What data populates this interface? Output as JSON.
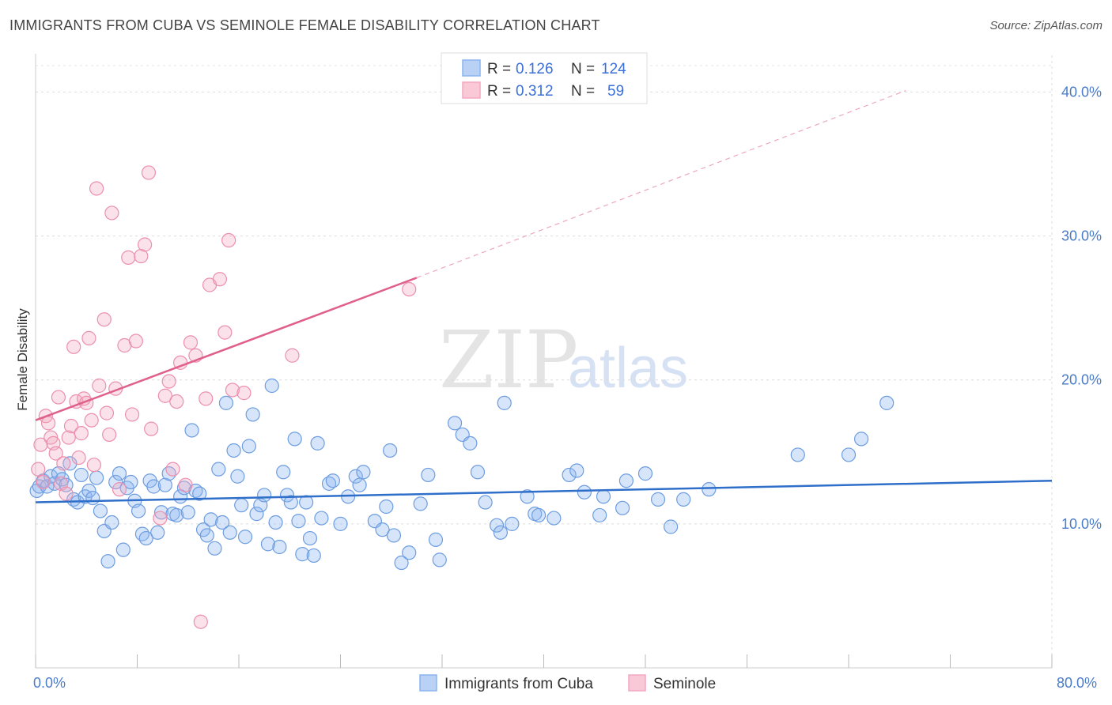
{
  "title": "IMMIGRANTS FROM CUBA VS SEMINOLE FEMALE DISABILITY CORRELATION CHART",
  "source": "Source: ZipAtlas.com",
  "watermark": {
    "zip": "ZIP",
    "atlas": "atlas"
  },
  "colors": {
    "blue": "#8ab4f0",
    "blue_stroke": "#6d9de0",
    "blue_line": "#2f6fc9",
    "pink": "#f4a8c0",
    "pink_stroke": "#ec8fae",
    "pink_line": "#e0608c",
    "axis_text": "#4a7cc9"
  },
  "legend": {
    "rows": [
      {
        "r_label": "R =",
        "r_value": "0.126",
        "n_label": "N =",
        "n_value": "124"
      },
      {
        "r_label": "R =",
        "r_value": "0.312",
        "n_label": "N =",
        "n_value": "59"
      }
    ]
  },
  "bottom_legend": [
    "Immigrants from Cuba",
    "Seminole"
  ],
  "chart_data": {
    "type": "scatter",
    "ylabel": "Female Disability",
    "xlim": [
      0,
      80
    ],
    "ylim": [
      0,
      42
    ],
    "x_ticks": [
      "0.0%",
      "80.0%"
    ],
    "y_ticks": [
      {
        "value": 10,
        "label": "10.0%"
      },
      {
        "value": 20,
        "label": "20.0%"
      },
      {
        "value": 30,
        "label": "30.0%"
      },
      {
        "value": 40,
        "label": "40.0%"
      }
    ],
    "series": [
      {
        "name": "Immigrants from Cuba",
        "trend": {
          "x0": 0,
          "y0": 11.5,
          "x1": 80,
          "y1": 13.0
        },
        "points": [
          [
            0.1,
            12.3
          ],
          [
            0.3,
            12.6
          ],
          [
            0.6,
            13.0
          ],
          [
            0.9,
            12.6
          ],
          [
            1.2,
            13.3
          ],
          [
            1.5,
            12.8
          ],
          [
            1.8,
            13.5
          ],
          [
            2.1,
            13.1
          ],
          [
            2.4,
            12.7
          ],
          [
            2.7,
            14.2
          ],
          [
            3.0,
            11.7
          ],
          [
            3.3,
            11.5
          ],
          [
            3.6,
            13.4
          ],
          [
            3.9,
            11.9
          ],
          [
            4.2,
            12.3
          ],
          [
            4.5,
            11.8
          ],
          [
            4.8,
            13.2
          ],
          [
            5.1,
            10.9
          ],
          [
            5.4,
            9.5
          ],
          [
            5.7,
            7.4
          ],
          [
            6.0,
            10.1
          ],
          [
            6.3,
            12.9
          ],
          [
            6.6,
            13.5
          ],
          [
            6.9,
            8.2
          ],
          [
            7.2,
            12.5
          ],
          [
            7.5,
            12.9
          ],
          [
            7.8,
            11.6
          ],
          [
            8.1,
            10.9
          ],
          [
            8.4,
            9.3
          ],
          [
            8.7,
            9.0
          ],
          [
            9.0,
            13.0
          ],
          [
            9.3,
            12.6
          ],
          [
            9.6,
            9.4
          ],
          [
            9.9,
            10.8
          ],
          [
            10.2,
            12.7
          ],
          [
            10.5,
            13.5
          ],
          [
            10.8,
            10.7
          ],
          [
            11.1,
            10.6
          ],
          [
            11.4,
            11.9
          ],
          [
            11.7,
            12.5
          ],
          [
            12.0,
            10.8
          ],
          [
            12.3,
            16.5
          ],
          [
            12.6,
            12.3
          ],
          [
            12.9,
            12.1
          ],
          [
            13.2,
            9.6
          ],
          [
            13.5,
            9.2
          ],
          [
            13.8,
            10.3
          ],
          [
            14.1,
            8.3
          ],
          [
            14.4,
            13.8
          ],
          [
            14.7,
            10.1
          ],
          [
            15.0,
            18.4
          ],
          [
            15.3,
            9.4
          ],
          [
            15.6,
            15.1
          ],
          [
            15.9,
            13.3
          ],
          [
            16.2,
            11.3
          ],
          [
            16.5,
            9.1
          ],
          [
            16.8,
            15.4
          ],
          [
            17.1,
            17.6
          ],
          [
            17.4,
            10.7
          ],
          [
            17.7,
            11.3
          ],
          [
            18.0,
            12.0
          ],
          [
            18.3,
            8.6
          ],
          [
            18.6,
            19.6
          ],
          [
            18.9,
            10.1
          ],
          [
            19.2,
            8.4
          ],
          [
            19.5,
            13.6
          ],
          [
            19.8,
            12.0
          ],
          [
            20.1,
            11.5
          ],
          [
            20.4,
            15.9
          ],
          [
            20.7,
            10.2
          ],
          [
            21.0,
            7.9
          ],
          [
            21.3,
            11.5
          ],
          [
            21.6,
            9.0
          ],
          [
            21.9,
            7.8
          ],
          [
            22.2,
            15.6
          ],
          [
            22.5,
            10.4
          ],
          [
            23.1,
            12.8
          ],
          [
            23.4,
            13.0
          ],
          [
            24.0,
            10.0
          ],
          [
            24.6,
            11.9
          ],
          [
            25.2,
            13.3
          ],
          [
            25.5,
            12.7
          ],
          [
            25.8,
            13.6
          ],
          [
            26.7,
            10.2
          ],
          [
            27.3,
            9.6
          ],
          [
            27.6,
            11.2
          ],
          [
            27.9,
            15.1
          ],
          [
            28.2,
            9.2
          ],
          [
            28.8,
            7.3
          ],
          [
            29.4,
            8.0
          ],
          [
            30.3,
            11.4
          ],
          [
            30.9,
            13.4
          ],
          [
            31.5,
            8.9
          ],
          [
            31.8,
            7.5
          ],
          [
            33.0,
            17.0
          ],
          [
            33.6,
            16.2
          ],
          [
            34.2,
            15.6
          ],
          [
            34.8,
            13.6
          ],
          [
            35.4,
            11.5
          ],
          [
            36.3,
            9.9
          ],
          [
            36.6,
            9.4
          ],
          [
            36.9,
            18.4
          ],
          [
            37.5,
            10.0
          ],
          [
            38.7,
            11.9
          ],
          [
            39.3,
            10.7
          ],
          [
            39.6,
            10.6
          ],
          [
            40.8,
            10.4
          ],
          [
            42.0,
            13.4
          ],
          [
            42.6,
            13.7
          ],
          [
            43.2,
            12.2
          ],
          [
            44.4,
            10.6
          ],
          [
            44.7,
            11.9
          ],
          [
            46.2,
            11.1
          ],
          [
            46.5,
            13.0
          ],
          [
            48.0,
            13.5
          ],
          [
            49.0,
            11.7
          ],
          [
            50.0,
            9.8
          ],
          [
            51.0,
            11.7
          ],
          [
            53.0,
            12.4
          ],
          [
            60.0,
            14.8
          ],
          [
            64.0,
            14.8
          ],
          [
            65.0,
            15.9
          ],
          [
            67.0,
            18.4
          ]
        ]
      },
      {
        "name": "Seminole",
        "trend": {
          "x0": 0,
          "y0": 17.2,
          "x1": 30,
          "y1": 27.1
        },
        "trend_ext": {
          "x0": 30,
          "y0": 27.1,
          "x1": 68.5,
          "y1": 40.1
        },
        "points": [
          [
            0.2,
            13.8
          ],
          [
            0.4,
            15.5
          ],
          [
            0.6,
            12.9
          ],
          [
            0.8,
            17.5
          ],
          [
            1.0,
            17.0
          ],
          [
            1.2,
            16.0
          ],
          [
            1.4,
            15.6
          ],
          [
            1.6,
            14.9
          ],
          [
            1.8,
            18.8
          ],
          [
            2.0,
            12.8
          ],
          [
            2.2,
            14.2
          ],
          [
            2.4,
            12.1
          ],
          [
            2.6,
            16.0
          ],
          [
            2.8,
            16.8
          ],
          [
            3.0,
            22.3
          ],
          [
            3.2,
            18.5
          ],
          [
            3.4,
            14.6
          ],
          [
            3.6,
            16.3
          ],
          [
            3.8,
            18.7
          ],
          [
            4.0,
            18.4
          ],
          [
            4.2,
            22.9
          ],
          [
            4.4,
            17.2
          ],
          [
            4.6,
            14.1
          ],
          [
            4.8,
            33.3
          ],
          [
            5.0,
            19.6
          ],
          [
            5.4,
            24.2
          ],
          [
            5.6,
            17.7
          ],
          [
            5.8,
            16.2
          ],
          [
            6.0,
            31.6
          ],
          [
            6.3,
            19.4
          ],
          [
            6.6,
            12.4
          ],
          [
            7.0,
            22.4
          ],
          [
            7.3,
            28.5
          ],
          [
            7.6,
            17.6
          ],
          [
            7.9,
            22.7
          ],
          [
            8.3,
            28.6
          ],
          [
            8.6,
            29.4
          ],
          [
            8.9,
            34.4
          ],
          [
            9.1,
            16.6
          ],
          [
            9.8,
            10.4
          ],
          [
            10.2,
            18.9
          ],
          [
            10.5,
            19.9
          ],
          [
            10.8,
            13.8
          ],
          [
            11.1,
            18.5
          ],
          [
            11.4,
            21.2
          ],
          [
            11.8,
            12.7
          ],
          [
            12.2,
            22.6
          ],
          [
            12.6,
            21.7
          ],
          [
            13.0,
            3.2
          ],
          [
            13.4,
            18.7
          ],
          [
            13.7,
            26.6
          ],
          [
            14.5,
            27.0
          ],
          [
            14.9,
            23.3
          ],
          [
            15.2,
            29.7
          ],
          [
            15.5,
            19.3
          ],
          [
            16.4,
            19.1
          ],
          [
            20.2,
            21.7
          ],
          [
            29.4,
            26.3
          ]
        ]
      }
    ]
  }
}
